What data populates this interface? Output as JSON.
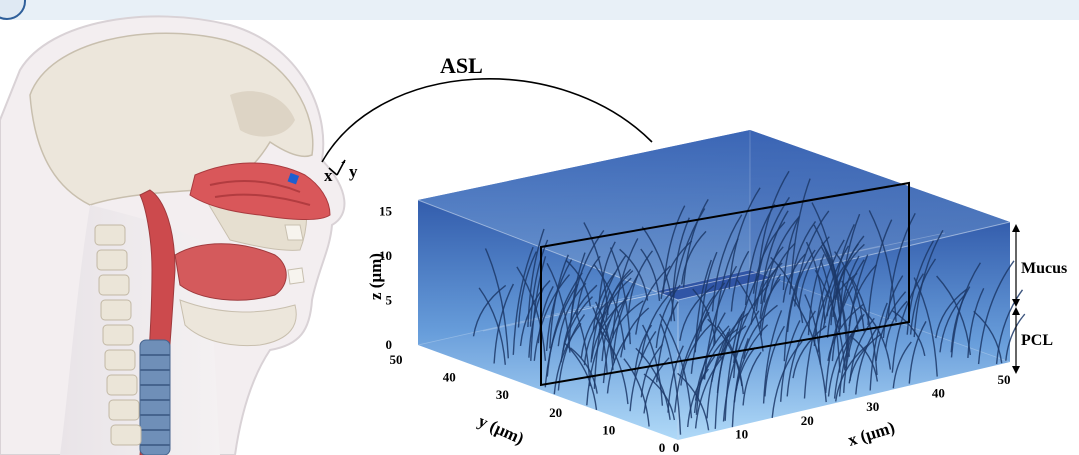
{
  "figure": {
    "callout_label": "ASL",
    "coord_x": "x",
    "coord_y": "y",
    "layer_labels": {
      "top": "Mucus",
      "bottom": "PCL"
    }
  },
  "colors": {
    "top_bar": "#e8f0f7",
    "mucus_top": "#2a55a8",
    "mucus_bottom": "#9fd0f5",
    "cilia": "#1c3868",
    "nasal_tissue": "#d9575a",
    "skull": "#ece6db",
    "nose_marker": "#1e5fd0"
  },
  "chart_data": {
    "type": "3d-box",
    "axes": {
      "x": {
        "label": "x (μm)",
        "ticks": [
          0,
          10,
          20,
          30,
          40,
          50
        ],
        "range": [
          0,
          50
        ]
      },
      "y": {
        "label": "y (μm)",
        "ticks": [
          0,
          10,
          20,
          30,
          40,
          50
        ],
        "range": [
          0,
          50
        ]
      },
      "z": {
        "label": "z (μm)",
        "ticks": [
          0,
          5,
          10,
          15
        ],
        "range": [
          0,
          18
        ]
      }
    },
    "layers": [
      {
        "name": "Mucus",
        "z_range": [
          7,
          18
        ]
      },
      {
        "name": "PCL",
        "z_range": [
          0,
          7
        ]
      }
    ]
  }
}
